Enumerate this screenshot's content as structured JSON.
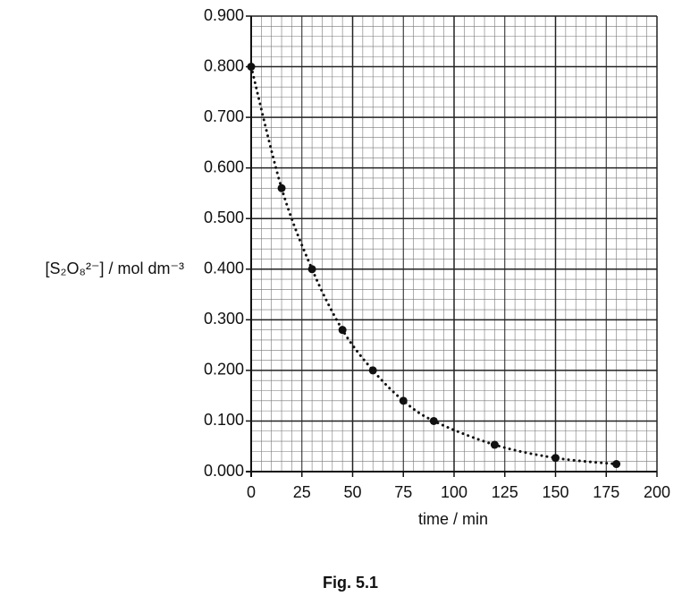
{
  "chart_data": {
    "type": "scatter",
    "x_label": "time / min",
    "y_label": "[S₂O₈²⁻] / mol dm⁻³",
    "caption": "Fig. 5.1",
    "x": [
      0,
      15,
      30,
      45,
      60,
      75,
      90,
      120,
      150,
      180
    ],
    "values": [
      0.8,
      0.56,
      0.4,
      0.28,
      0.2,
      0.14,
      0.1,
      0.053,
      0.027,
      0.015
    ],
    "color": "#111111",
    "xlim": [
      0,
      200
    ],
    "ylim": [
      0,
      0.9
    ],
    "xticks": [
      0,
      25,
      50,
      75,
      100,
      125,
      150,
      175,
      200
    ],
    "yticks": [
      {
        "value": 0,
        "label": "0.000"
      },
      {
        "value": 0.1,
        "label": "0.100"
      },
      {
        "value": 0.2,
        "label": "0.200"
      },
      {
        "value": 0.3,
        "label": "0.300"
      },
      {
        "value": 0.4,
        "label": "0.400"
      },
      {
        "value": 0.5,
        "label": "0.500"
      },
      {
        "value": 0.6,
        "label": "0.600"
      },
      {
        "value": 0.7,
        "label": "0.700"
      },
      {
        "value": 0.8,
        "label": "0.800"
      },
      {
        "value": 0.9,
        "label": "0.900"
      }
    ],
    "grid": true,
    "major_grid": {
      "x": 50,
      "y": 0.1
    },
    "minor_grid": {
      "x": 5,
      "y": 0.02
    },
    "curve_style": "dotted"
  }
}
